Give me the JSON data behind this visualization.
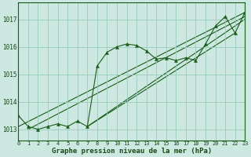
{
  "title": "",
  "xlabel": "Graphe pression niveau de la mer (hPa)",
  "bg_color": "#cce8e0",
  "grid_color": "#99ccbb",
  "line_color": "#1a5c1a",
  "x": [
    0,
    1,
    2,
    3,
    4,
    5,
    6,
    7,
    8,
    9,
    10,
    11,
    12,
    13,
    14,
    15,
    16,
    17,
    18,
    19,
    20,
    21,
    22,
    23
  ],
  "y": [
    1013.5,
    1013.1,
    1013.0,
    1013.1,
    1013.2,
    1013.1,
    1013.3,
    1013.1,
    1015.3,
    1015.8,
    1016.0,
    1016.1,
    1016.05,
    1015.85,
    1015.55,
    1015.6,
    1015.5,
    1015.6,
    1015.5,
    1016.1,
    1016.75,
    1017.1,
    1016.5,
    1017.25
  ],
  "ylim": [
    1012.6,
    1017.6
  ],
  "yticks": [
    1013,
    1014,
    1015,
    1016,
    1017
  ],
  "xticks": [
    0,
    1,
    2,
    3,
    4,
    5,
    6,
    7,
    8,
    9,
    10,
    11,
    12,
    13,
    14,
    15,
    16,
    17,
    18,
    19,
    20,
    21,
    22,
    23
  ],
  "xlim": [
    0,
    23
  ],
  "trend_lines": [
    {
      "x0": 0,
      "y0": 1013.1,
      "x1": 23,
      "y1": 1017.25
    },
    {
      "x0": 1,
      "y0": 1013.0,
      "x1": 23,
      "y1": 1017.1
    },
    {
      "x0": 7,
      "y0": 1013.1,
      "x1": 23,
      "y1": 1017.0
    },
    {
      "x0": 7,
      "y0": 1013.1,
      "x1": 22,
      "y1": 1016.5
    }
  ]
}
